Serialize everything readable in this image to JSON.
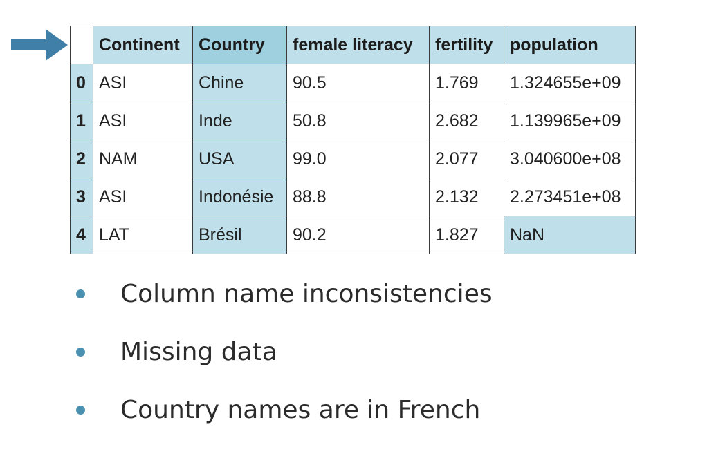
{
  "table": {
    "columns": [
      "Continent",
      "Country",
      "female literacy",
      "fertility",
      "population"
    ],
    "rows": [
      {
        "index": "0",
        "cells": [
          "ASI",
          "Chine",
          "90.5",
          "1.769",
          "1.324655e+09"
        ]
      },
      {
        "index": "1",
        "cells": [
          "ASI",
          "Inde",
          "50.8",
          "2.682",
          "1.139965e+09"
        ]
      },
      {
        "index": "2",
        "cells": [
          "NAM",
          "USA",
          "99.0",
          "2.077",
          "3.040600e+08"
        ]
      },
      {
        "index": "3",
        "cells": [
          "ASI",
          "Indonésie",
          "88.8",
          "2.132",
          "2.273451e+08"
        ]
      },
      {
        "index": "4",
        "cells": [
          "LAT",
          "Brésil",
          "90.2",
          "1.827",
          "NaN"
        ]
      }
    ]
  },
  "bullets": [
    "Column name inconsistencies",
    "Missing data",
    "Country names are in French"
  ],
  "colors": {
    "highlight": "#bfe0ea",
    "arrow": "#3f7fa8",
    "bullet": "#4a90b0"
  },
  "icons": {
    "pointer": "right-arrow-icon"
  }
}
